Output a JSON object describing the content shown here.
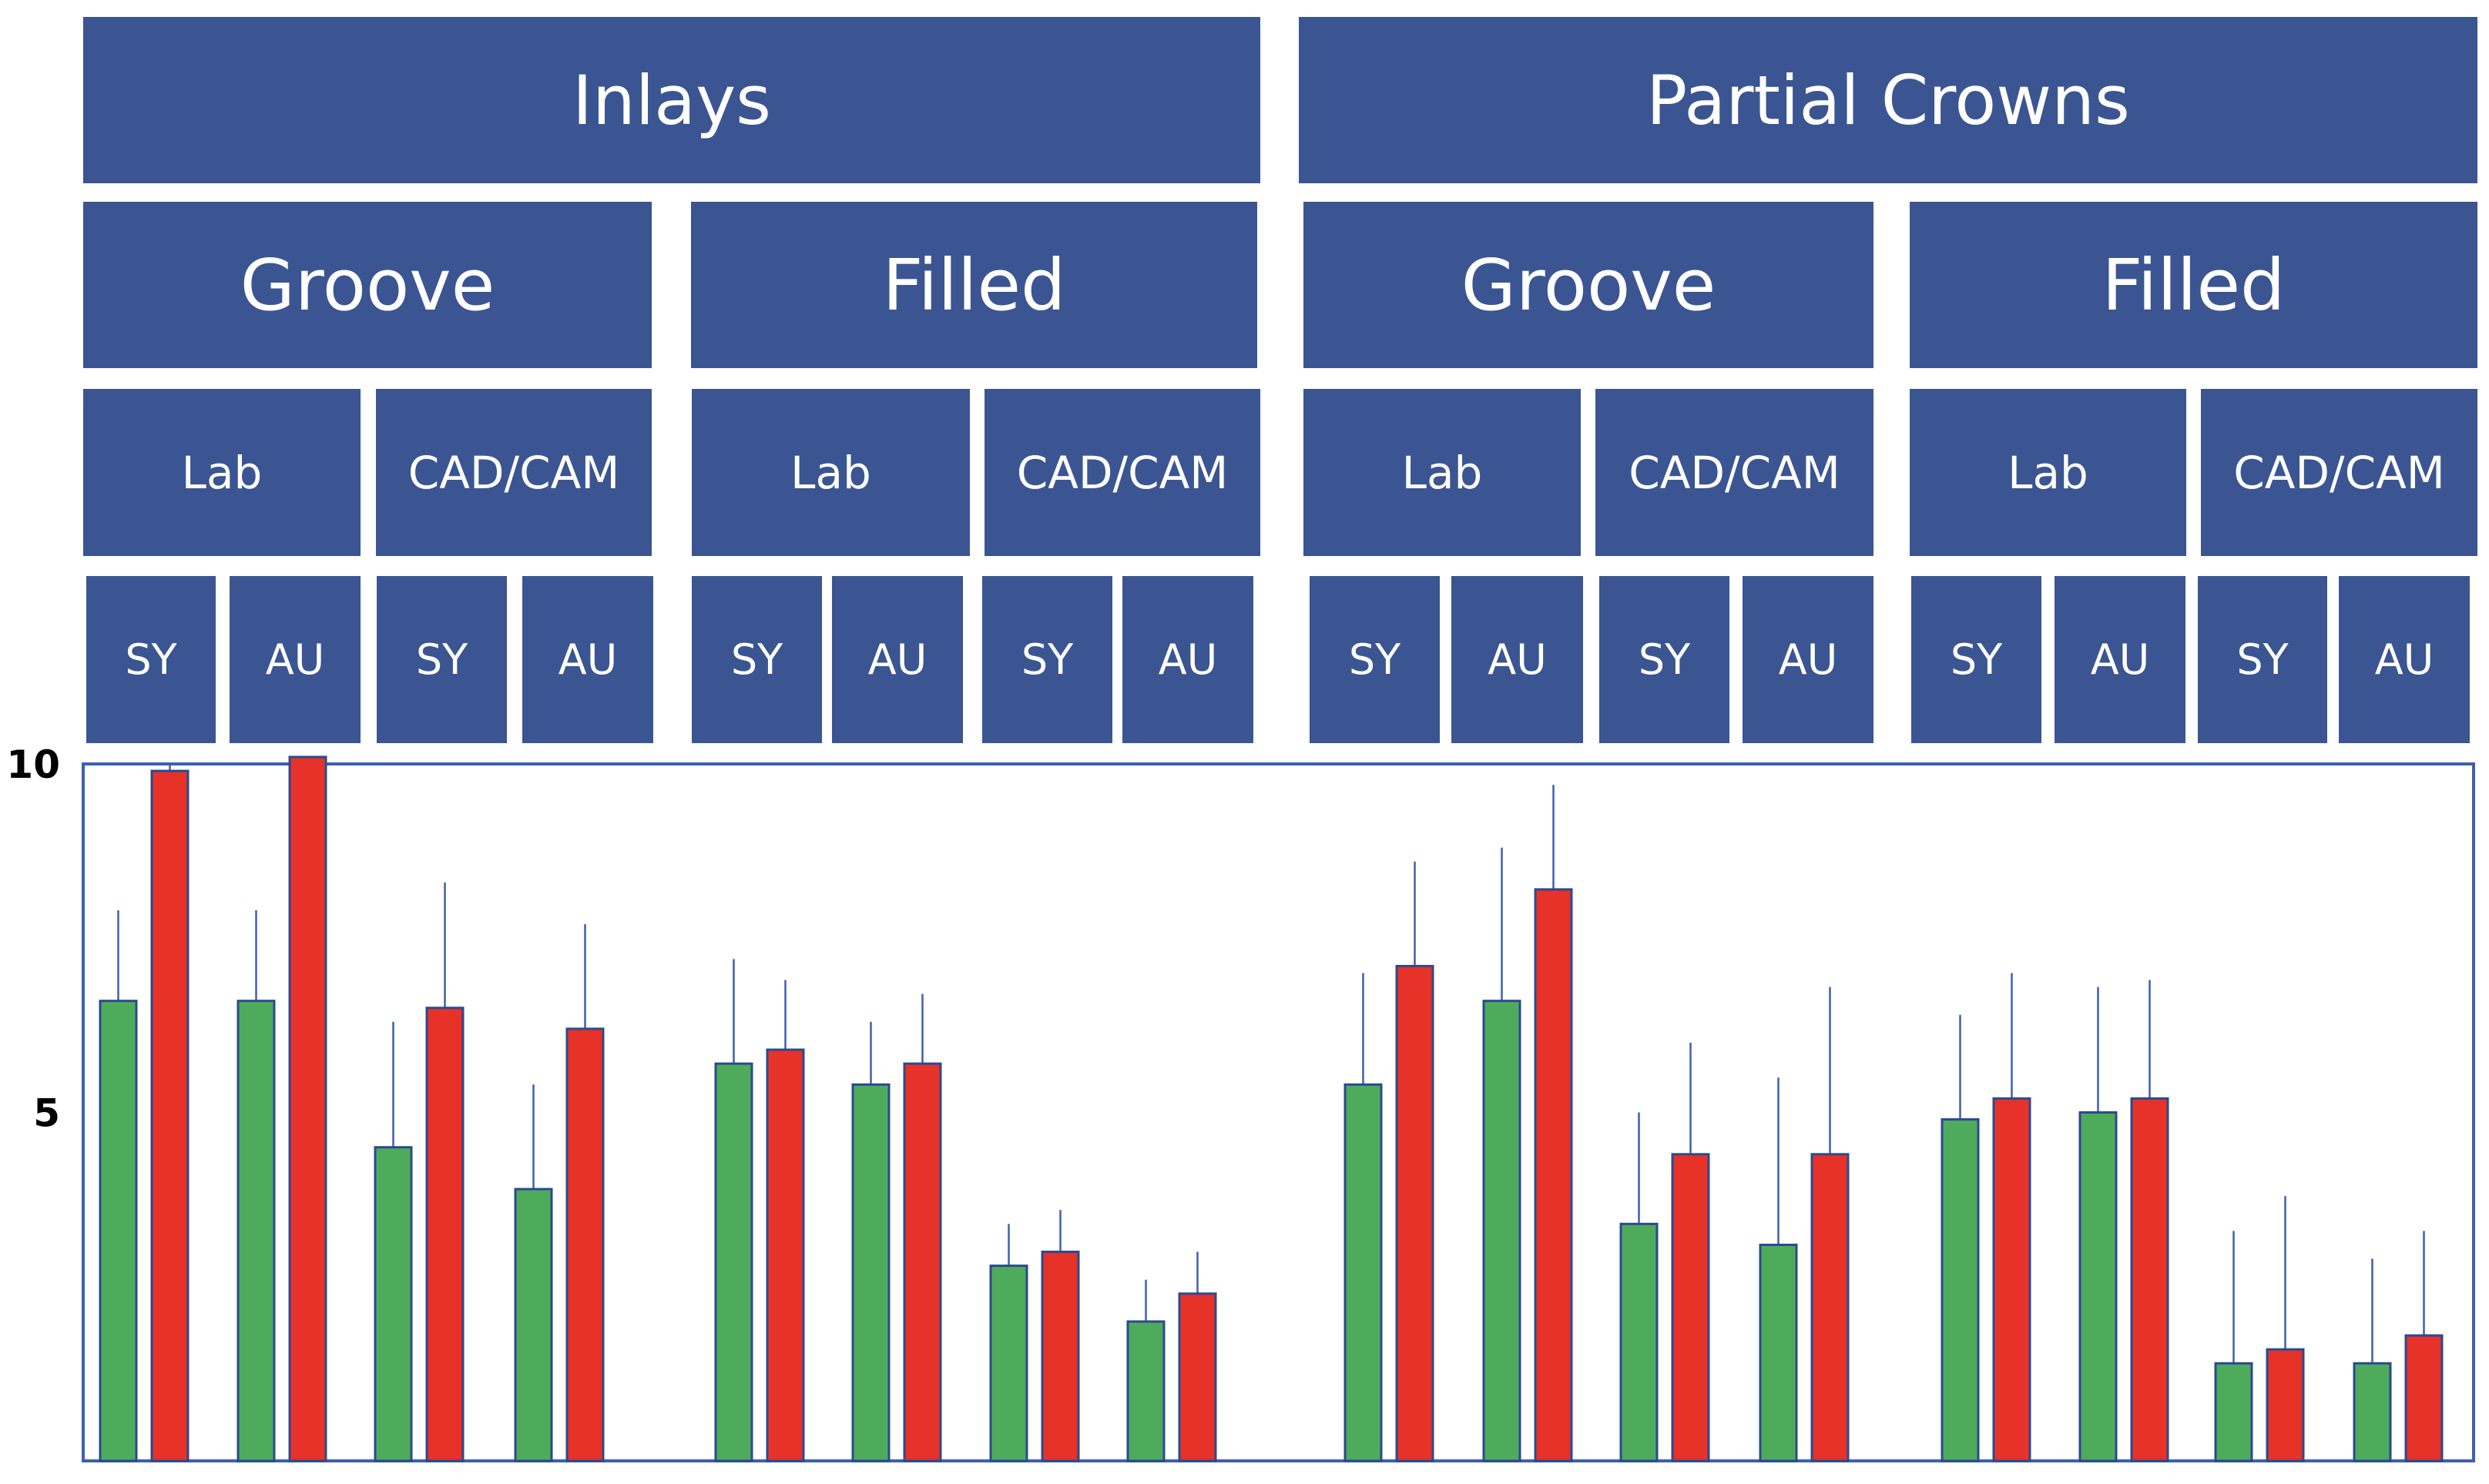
{
  "colors": {
    "header_bg": "#3b5592",
    "header_text": "#ffffff",
    "bar_sy": "#4eab5b",
    "bar_au": "#e63228",
    "bar_edge": "#2b4a8f",
    "error_bar": "#3f5fb0",
    "plot_border": "#3f5fb0"
  },
  "header": {
    "restorations": [
      {
        "label": "Inlays",
        "preparations": [
          {
            "label": "Groove",
            "fabrications": [
              {
                "label": "Lab",
                "cements": [
                  "SY",
                  "AU"
                ]
              },
              {
                "label": "CAD/CAM",
                "cements": [
                  "SY",
                  "AU"
                ]
              }
            ]
          },
          {
            "label": "Filled",
            "fabrications": [
              {
                "label": "Lab",
                "cements": [
                  "SY",
                  "AU"
                ]
              },
              {
                "label": "CAD/CAM",
                "cements": [
                  "SY",
                  "AU"
                ]
              }
            ]
          }
        ]
      },
      {
        "label": "Partial Crowns",
        "preparations": [
          {
            "label": "Groove",
            "fabrications": [
              {
                "label": "Lab",
                "cements": [
                  "SY",
                  "AU"
                ]
              },
              {
                "label": "CAD/CAM",
                "cements": [
                  "SY",
                  "AU"
                ]
              }
            ]
          },
          {
            "label": "Filled",
            "fabrications": [
              {
                "label": "Lab",
                "cements": [
                  "SY",
                  "AU"
                ]
              },
              {
                "label": "CAD/CAM",
                "cements": [
                  "SY",
                  "AU"
                ]
              }
            ]
          }
        ]
      }
    ]
  },
  "chart_data": {
    "type": "bar",
    "title": "",
    "xlabel": "",
    "ylabel": "",
    "ylim": [
      0,
      10
    ],
    "yticks": [
      5,
      10
    ],
    "grid": false,
    "legend": "none",
    "series": [
      {
        "name": "",
        "color": "#4eab5b",
        "values": [
          6.6,
          6.6,
          4.5,
          3.9,
          5.7,
          5.4,
          2.8,
          2.0,
          5.4,
          6.6,
          3.4,
          3.1,
          4.9,
          5.0,
          1.4,
          1.4
        ],
        "errors": [
          1.3,
          1.3,
          1.8,
          1.5,
          1.5,
          0.9,
          0.6,
          0.6,
          1.6,
          2.2,
          1.6,
          2.4,
          1.5,
          1.8,
          1.9,
          1.5
        ]
      },
      {
        "name": "",
        "color": "#e63228",
        "values": [
          9.9,
          10.1,
          6.5,
          6.2,
          5.9,
          5.7,
          3.0,
          2.4,
          7.1,
          8.2,
          4.4,
          4.4,
          5.2,
          5.2,
          1.6,
          1.8
        ],
        "errors": [
          0.8,
          0.5,
          1.8,
          1.5,
          1.0,
          1.0,
          0.6,
          0.6,
          1.5,
          1.5,
          1.6,
          2.4,
          1.8,
          1.7,
          2.2,
          1.5
        ]
      }
    ]
  }
}
